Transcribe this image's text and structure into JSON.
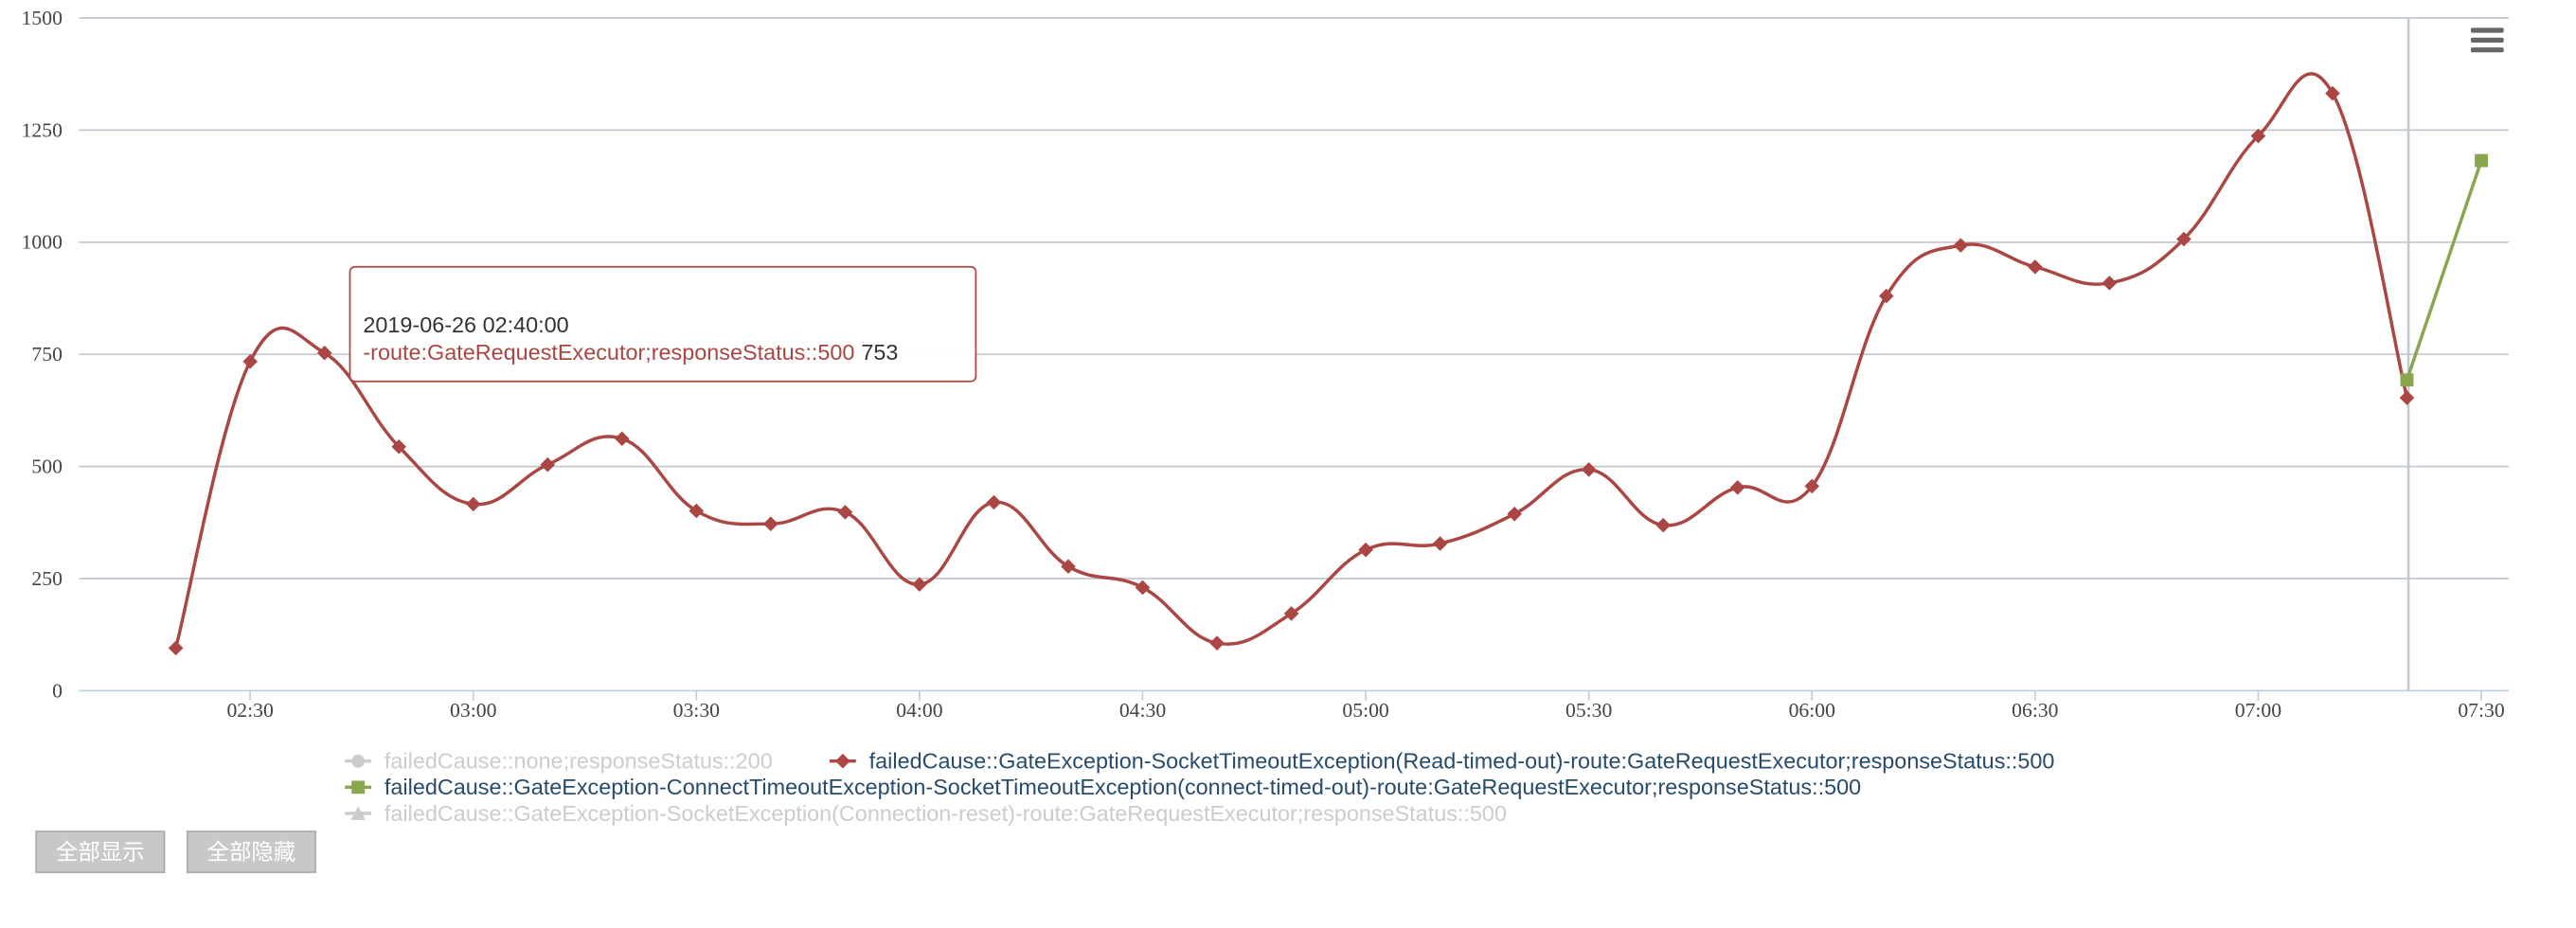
{
  "chart_data": {
    "type": "line",
    "categories": [
      null,
      "02:30",
      null,
      null,
      "03:00",
      null,
      null,
      "03:30",
      null,
      null,
      "04:00",
      null,
      null,
      "04:30",
      null,
      null,
      "05:00",
      null,
      null,
      "05:30",
      null,
      null,
      "06:00",
      null,
      null,
      "06:30",
      null,
      null,
      "07:00",
      null,
      null,
      "07:30"
    ],
    "ylim": [
      0,
      1500
    ],
    "yticks": [
      0,
      250,
      500,
      750,
      1000,
      1250,
      1500
    ],
    "grid": true,
    "smooth": true,
    "series": [
      {
        "name": "failedCause::none;responseStatus::200",
        "color": "#4572a7",
        "marker": "circle",
        "visible": false,
        "values": [
          null,
          null,
          null,
          null,
          null,
          null,
          null,
          null,
          null,
          null,
          null,
          null,
          null,
          null,
          null,
          null,
          null,
          null,
          null,
          null,
          null,
          null,
          null,
          null,
          null,
          null,
          null,
          null,
          null,
          null,
          null,
          null
        ]
      },
      {
        "name": "failedCause::GateException-SocketTimeoutException(Read-timed-out)-route:GateRequestExecutor;responseStatus::500",
        "color": "#aa4643",
        "marker": "diamond",
        "visible": true,
        "values": [
          95,
          734,
          753,
          544,
          416,
          504,
          562,
          401,
          372,
          398,
          237,
          420,
          277,
          230,
          106,
          172,
          314,
          328,
          394,
          493,
          369,
          453,
          456,
          880,
          993,
          945,
          909,
          1007,
          1237,
          1332,
          653,
          null
        ]
      },
      {
        "name": "failedCause::GateException-ConnectTimeoutException-SocketTimeoutException(connect-timed-out)-route:GateRequestExecutor;responseStatus::500",
        "color": "#89a54e",
        "marker": "square",
        "visible": true,
        "values": [
          null,
          null,
          null,
          null,
          null,
          null,
          null,
          null,
          null,
          null,
          null,
          null,
          null,
          null,
          null,
          null,
          null,
          null,
          null,
          null,
          null,
          null,
          null,
          null,
          null,
          null,
          null,
          null,
          null,
          null,
          693,
          1182
        ]
      },
      {
        "name": "failedCause::GateException-SocketException(Connection-reset)-route:GateRequestExecutor;responseStatus::500",
        "color": "#80699b",
        "marker": "triangle",
        "visible": false,
        "values": [
          null,
          null,
          null,
          null,
          null,
          null,
          null,
          null,
          null,
          null,
          null,
          null,
          null,
          null,
          null,
          null,
          null,
          null,
          null,
          null,
          null,
          null,
          null,
          null,
          null,
          null,
          null,
          null,
          null,
          null,
          null,
          null
        ]
      }
    ],
    "tooltip": {
      "title": "2019-06-26 02:40:00",
      "label": "-route:GateRequestExecutor;responseStatus::500"
    }
  },
  "buttons": [
    "全部显示",
    "全部隐藏"
  ]
}
